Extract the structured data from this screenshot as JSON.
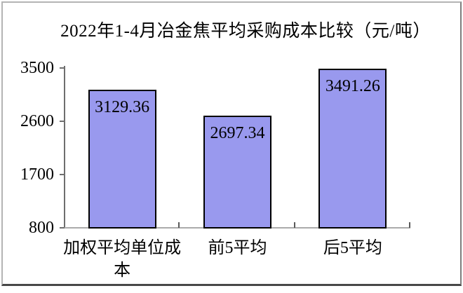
{
  "chart_data": {
    "type": "bar",
    "title": "2022年1-4月冶金焦平均采购成本比较（元/吨）",
    "categories": [
      "加权平均单位成本",
      "前5平均",
      "后5平均"
    ],
    "values": [
      3129.36,
      2697.34,
      3491.26
    ],
    "value_labels": [
      "3129.36",
      "2697.34",
      "3491.26"
    ],
    "xlabel": "",
    "ylabel": "",
    "ylim": [
      800,
      3500
    ],
    "y_ticks": [
      800,
      1700,
      2600,
      3500
    ],
    "y_tick_labels": [
      "800",
      "1700",
      "2600",
      "3500"
    ],
    "grid": false,
    "legend_position": "none",
    "colors": {
      "bar_fill": "#9999EE",
      "bar_border": "#000000",
      "y_axis_line": "#6e6e6e",
      "x_axis_line": "#ababab",
      "tick_mark": "#5a5a5a",
      "text": "#000000",
      "background": "#FFFFFF"
    }
  }
}
